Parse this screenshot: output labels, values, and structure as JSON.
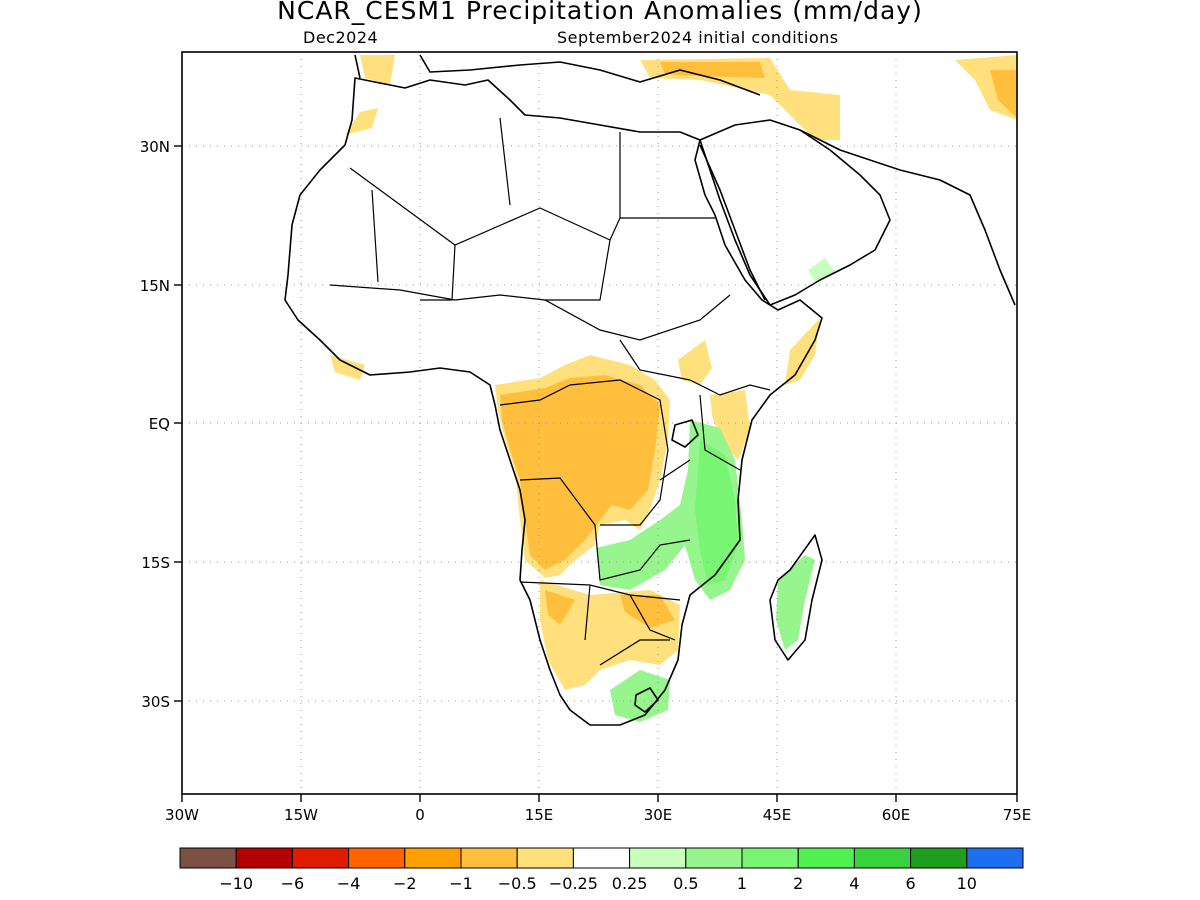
{
  "title": "NCAR_CESM1 Precipitation Anomalies (mm/day)",
  "subtitle_left": "Dec2024",
  "subtitle_right": "September2024 initial conditions",
  "map": {
    "lon_range": [
      -30,
      75
    ],
    "lat_range": [
      -40,
      40
    ],
    "x_ticks": [
      {
        "lon": -30,
        "label": "30W"
      },
      {
        "lon": -15,
        "label": "15W"
      },
      {
        "lon": 0,
        "label": "0"
      },
      {
        "lon": 15,
        "label": "15E"
      },
      {
        "lon": 30,
        "label": "30E"
      },
      {
        "lon": 45,
        "label": "45E"
      },
      {
        "lon": 60,
        "label": "60E"
      },
      {
        "lon": 75,
        "label": "75E"
      }
    ],
    "y_ticks": [
      {
        "lat": 30,
        "label": "30N"
      },
      {
        "lat": 15,
        "label": "15N"
      },
      {
        "lat": 0,
        "label": "EQ"
      },
      {
        "lat": -15,
        "label": "15S"
      },
      {
        "lat": -30,
        "label": "30S"
      }
    ],
    "grid": "dotted"
  },
  "colorbar": {
    "colors": [
      "#7b5143",
      "#b40000",
      "#e01c00",
      "#ff6400",
      "#ffa000",
      "#ffbe3c",
      "#ffe07c",
      "#ffffff",
      "#c8ffbe",
      "#96f58c",
      "#78f573",
      "#50f050",
      "#37d23c",
      "#1ea01e",
      "#1e6ef0"
    ],
    "labels": [
      "−10",
      "−6",
      "−4",
      "−2",
      "−1",
      "−0.5",
      "−0.25",
      "0.25",
      "0.5",
      "1",
      "2",
      "4",
      "6",
      "10"
    ]
  }
}
